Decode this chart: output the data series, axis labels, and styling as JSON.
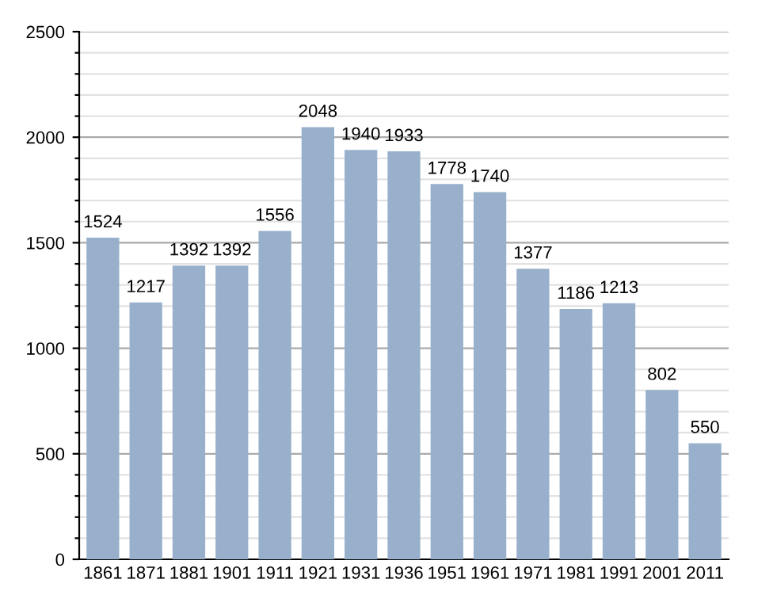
{
  "chart_data": {
    "type": "bar",
    "categories": [
      "1861",
      "1871",
      "1881",
      "1901",
      "1911",
      "1921",
      "1931",
      "1936",
      "1951",
      "1961",
      "1971",
      "1981",
      "1991",
      "2001",
      "2011"
    ],
    "values": [
      1524,
      1217,
      1392,
      1392,
      1556,
      2048,
      1940,
      1933,
      1778,
      1740,
      1377,
      1186,
      1213,
      802,
      550
    ],
    "color": "#98b0cb",
    "ylim": [
      0,
      2500
    ],
    "yticks": [
      0,
      {
        "value": 100,
        "label": null
      },
      {
        "value": 200,
        "label": null
      },
      {
        "value": 300,
        "label": null
      },
      {
        "value": 400,
        "label": null
      },
      500,
      {
        "value": 600,
        "label": null
      },
      {
        "value": 700,
        "label": null
      },
      {
        "value": 800,
        "label": null
      },
      {
        "value": 900,
        "label": null
      },
      1000,
      {
        "value": 1100,
        "label": null
      },
      {
        "value": 1200,
        "label": null
      },
      {
        "value": 1300,
        "label": null
      },
      {
        "value": 1400,
        "label": null
      },
      1500,
      {
        "value": 1600,
        "label": null
      },
      {
        "value": 1700,
        "label": null
      },
      {
        "value": 1800,
        "label": null
      },
      {
        "value": 1900,
        "label": null
      },
      2000,
      {
        "value": 2100,
        "label": null
      },
      {
        "value": 2200,
        "label": null
      },
      {
        "value": 2300,
        "label": null
      },
      {
        "value": 2400,
        "label": null
      },
      2500
    ],
    "grid": "y",
    "data_labels": true
  }
}
